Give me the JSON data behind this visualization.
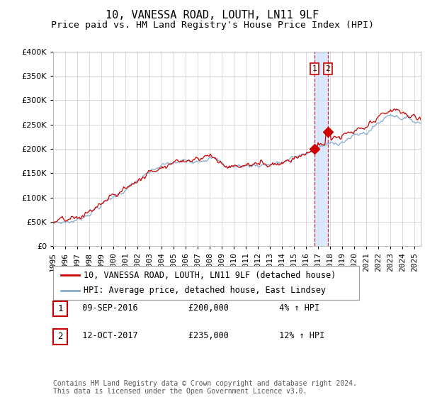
{
  "title": "10, VANESSA ROAD, LOUTH, LN11 9LF",
  "subtitle": "Price paid vs. HM Land Registry's House Price Index (HPI)",
  "ylim": [
    0,
    400000
  ],
  "xlim_start": 1995.0,
  "xlim_end": 2025.5,
  "vline1_x": 2016.69,
  "vline2_x": 2017.79,
  "marker1_x": 2016.69,
  "marker1_y": 200000,
  "marker2_x": 2017.79,
  "marker2_y": 235000,
  "red_line_color": "#cc0000",
  "blue_line_color": "#88aacc",
  "vline_color": "#cc0000",
  "vband_color": "#cce0ff",
  "background_color": "#ffffff",
  "grid_color": "#cccccc",
  "legend_label_red": "10, VANESSA ROAD, LOUTH, LN11 9LF (detached house)",
  "legend_label_blue": "HPI: Average price, detached house, East Lindsey",
  "table_row1": [
    "1",
    "09-SEP-2016",
    "£200,000",
    "4% ↑ HPI"
  ],
  "table_row2": [
    "2",
    "12-OCT-2017",
    "£235,000",
    "12% ↑ HPI"
  ],
  "footnote": "Contains HM Land Registry data © Crown copyright and database right 2024.\nThis data is licensed under the Open Government Licence v3.0.",
  "title_fontsize": 11,
  "subtitle_fontsize": 9.5,
  "tick_fontsize": 8,
  "legend_fontsize": 8.5,
  "table_fontsize": 8.5,
  "footnote_fontsize": 7
}
